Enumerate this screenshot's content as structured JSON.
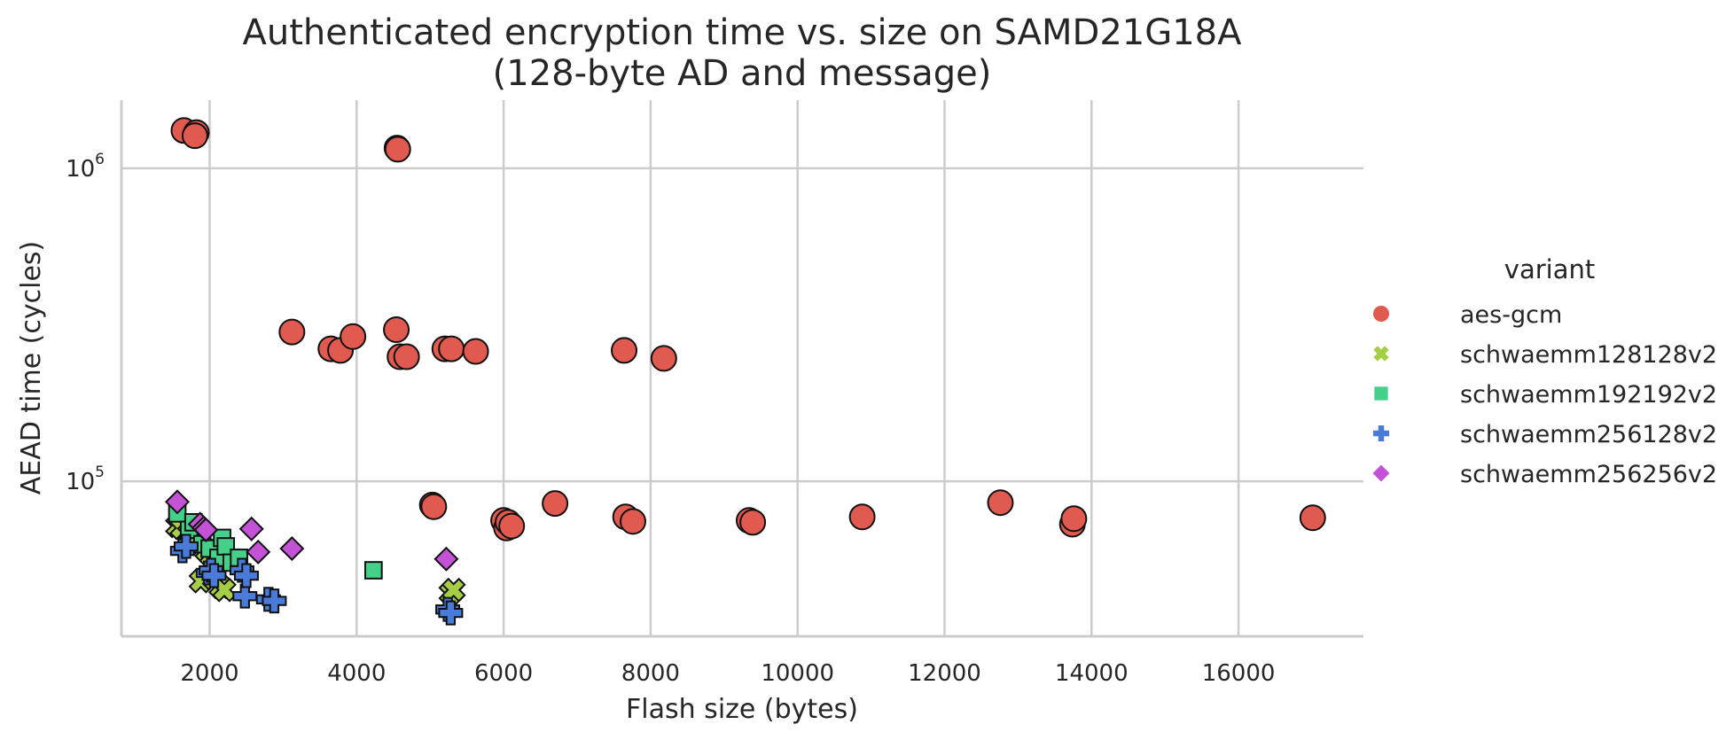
{
  "chart_data": {
    "type": "scatter",
    "title": "Authenticated encryption time vs. size on SAMD21G18A",
    "subtitle": "(128-byte AD and message)",
    "xlabel": "Flash size (bytes)",
    "ylabel": "AEAD time (cycles)",
    "xlim": [
      800,
      17700
    ],
    "ylim": [
      32000,
      1650000
    ],
    "yscale": "log",
    "grid": true,
    "x_ticks": [
      {
        "value": 2000,
        "label": "2000"
      },
      {
        "value": 4000,
        "label": "4000"
      },
      {
        "value": 6000,
        "label": "6000"
      },
      {
        "value": 8000,
        "label": "8000"
      },
      {
        "value": 10000,
        "label": "10000"
      },
      {
        "value": 12000,
        "label": "12000"
      },
      {
        "value": 14000,
        "label": "14000"
      },
      {
        "value": 16000,
        "label": "16000"
      }
    ],
    "y_ticks": [
      {
        "value": 100000,
        "base": "10",
        "exp": "5"
      },
      {
        "value": 1000000,
        "base": "10",
        "exp": "6"
      }
    ],
    "legend": {
      "title": "variant",
      "placement": "right"
    },
    "series": [
      {
        "name": "aes-gcm",
        "marker": "circle",
        "color": "#e05a50",
        "points": [
          [
            1650,
            1320000
          ],
          [
            1820,
            1300000
          ],
          [
            1800,
            1270000
          ],
          [
            4550,
            1160000
          ],
          [
            4560,
            1150000
          ],
          [
            3120,
            300000
          ],
          [
            3650,
            265000
          ],
          [
            3780,
            262000
          ],
          [
            3950,
            290000
          ],
          [
            4540,
            305000
          ],
          [
            4590,
            250000
          ],
          [
            4680,
            250000
          ],
          [
            5200,
            265000
          ],
          [
            5290,
            265000
          ],
          [
            5620,
            260000
          ],
          [
            7640,
            262000
          ],
          [
            8180,
            247000
          ],
          [
            5030,
            84000
          ],
          [
            5050,
            83000
          ],
          [
            6000,
            75000
          ],
          [
            6040,
            71000
          ],
          [
            6060,
            74000
          ],
          [
            6110,
            72000
          ],
          [
            6700,
            85000
          ],
          [
            7660,
            77000
          ],
          [
            7760,
            74500
          ],
          [
            9340,
            75000
          ],
          [
            9390,
            74000
          ],
          [
            10880,
            77000
          ],
          [
            12760,
            85500
          ],
          [
            13740,
            73000
          ],
          [
            13760,
            76000
          ],
          [
            17010,
            76500
          ]
        ]
      },
      {
        "name": "schwaemm128128v2",
        "marker": "x",
        "color": "#a5cd45",
        "points": [
          [
            1560,
            72000
          ],
          [
            1620,
            71000
          ],
          [
            1720,
            68000
          ],
          [
            1800,
            65000
          ],
          [
            1850,
            63000
          ],
          [
            1880,
            48000
          ],
          [
            1960,
            60000
          ],
          [
            2020,
            58000
          ],
          [
            2060,
            49000
          ],
          [
            2150,
            46000
          ],
          [
            2200,
            45000
          ],
          [
            5280,
            44000
          ],
          [
            5320,
            45000
          ]
        ]
      },
      {
        "name": "schwaemm192192v2",
        "marker": "square",
        "color": "#45d08a",
        "points": [
          [
            1560,
            79000
          ],
          [
            1720,
            70000
          ],
          [
            1780,
            74000
          ],
          [
            1900,
            63000
          ],
          [
            2000,
            61000
          ],
          [
            2120,
            57000
          ],
          [
            2170,
            66000
          ],
          [
            2220,
            62000
          ],
          [
            2300,
            55000
          ],
          [
            2400,
            57000
          ],
          [
            4230,
            52000
          ]
        ]
      },
      {
        "name": "schwaemm256128v2",
        "marker": "plus",
        "color": "#4a7bd8",
        "points": [
          [
            1630,
            60000
          ],
          [
            1680,
            62000
          ],
          [
            1980,
            51000
          ],
          [
            2020,
            52000
          ],
          [
            2060,
            50000
          ],
          [
            2440,
            52000
          ],
          [
            2480,
            43000
          ],
          [
            2500,
            50000
          ],
          [
            2800,
            42000
          ],
          [
            2880,
            41500
          ],
          [
            5240,
            39000
          ],
          [
            5280,
            38000
          ]
        ]
      },
      {
        "name": "schwaemm256256v2",
        "marker": "diamond",
        "color": "#c452d6",
        "points": [
          [
            1560,
            86000
          ],
          [
            1870,
            73000
          ],
          [
            1920,
            71000
          ],
          [
            1950,
            70000
          ],
          [
            2570,
            70500
          ],
          [
            2660,
            59500
          ],
          [
            3120,
            61000
          ],
          [
            5220,
            56500
          ]
        ]
      }
    ]
  }
}
